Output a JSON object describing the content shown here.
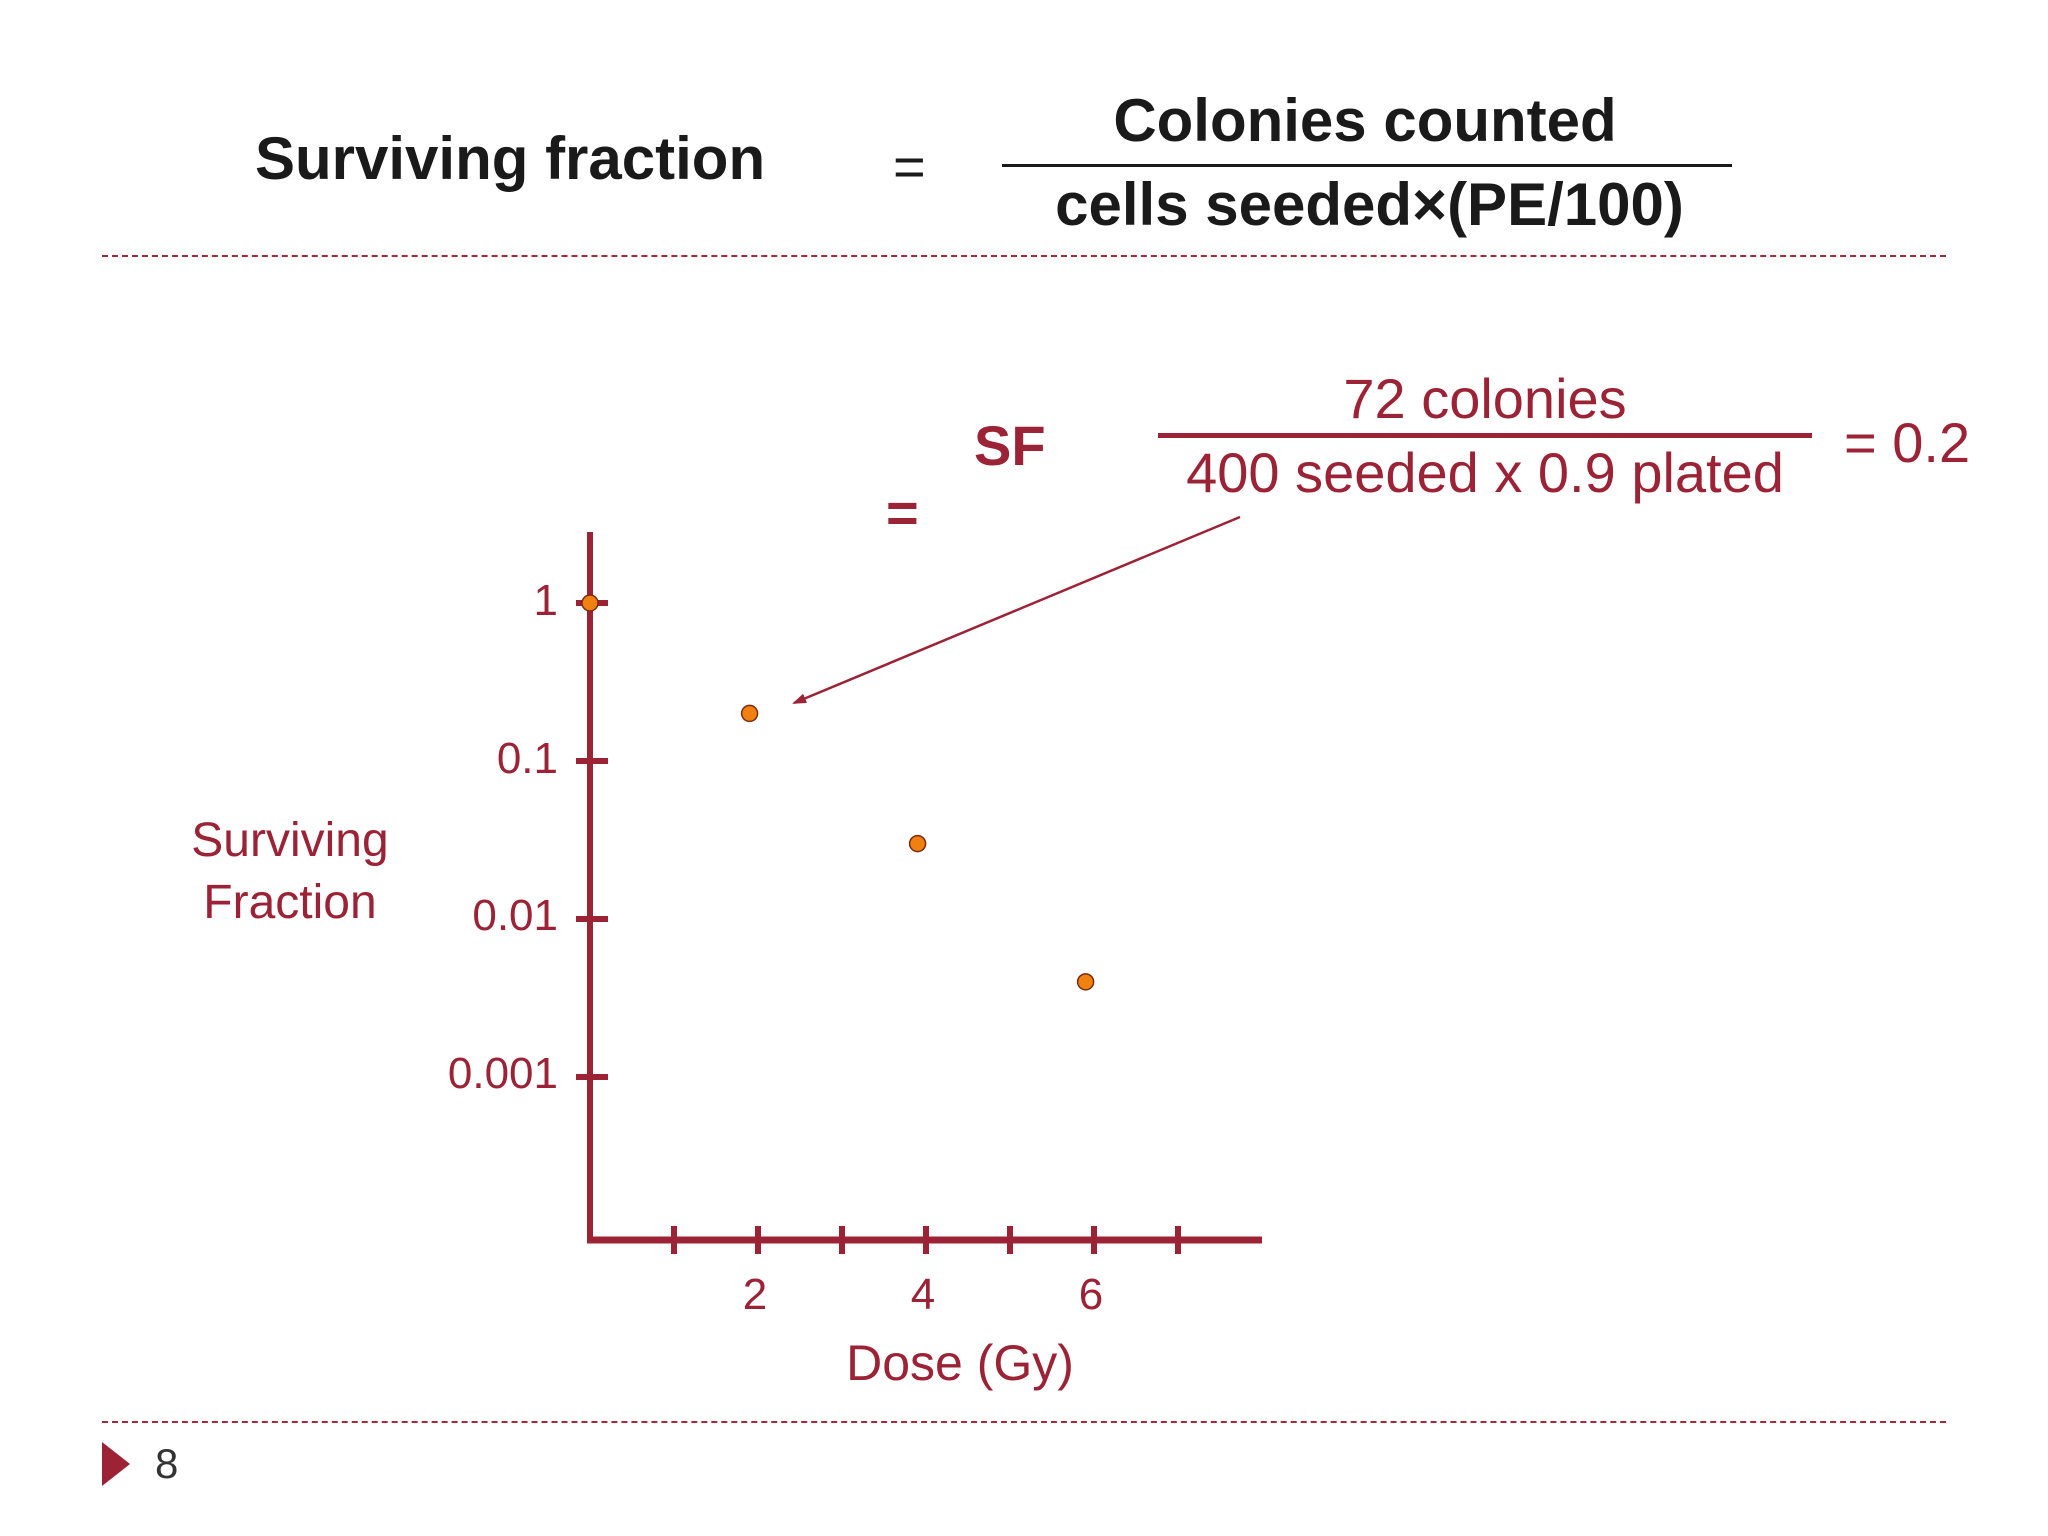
{
  "formula": {
    "lhs": "Surviving fraction",
    "equals": "=",
    "numerator": "Colonies counted",
    "denominator": "cells seeded×(PE/100)"
  },
  "calculation": {
    "sf_label": "SF",
    "equals": "=",
    "numerator": "72 colonies",
    "denominator": "400 seeded x 0.9 plated",
    "result": "= 0.2"
  },
  "chart_data": {
    "type": "scatter",
    "ylabel": "Surviving Fraction",
    "xlabel": "Dose (Gy)",
    "y_scale": "log",
    "y_ticks": [
      "1",
      "0.1",
      "0.01",
      "0.001"
    ],
    "x_ticks": [
      "2",
      "4",
      "6"
    ],
    "x_tick_marks": [
      1,
      2,
      3,
      4,
      5,
      6,
      7
    ],
    "xlim": [
      0,
      8
    ],
    "ylim": [
      0.0001,
      2
    ],
    "points": [
      {
        "x": 0,
        "y": 1
      },
      {
        "x": 1.9,
        "y": 0.2
      },
      {
        "x": 3.9,
        "y": 0.03
      },
      {
        "x": 5.9,
        "y": 0.004
      }
    ],
    "point_color": "#f08010",
    "axis_color": "#9b2335",
    "annotation": "arrow from calculation to point at dose 2"
  },
  "footer": {
    "slide_number": "8"
  },
  "colors": {
    "accent": "#9b2335",
    "marker": "#f08010"
  }
}
